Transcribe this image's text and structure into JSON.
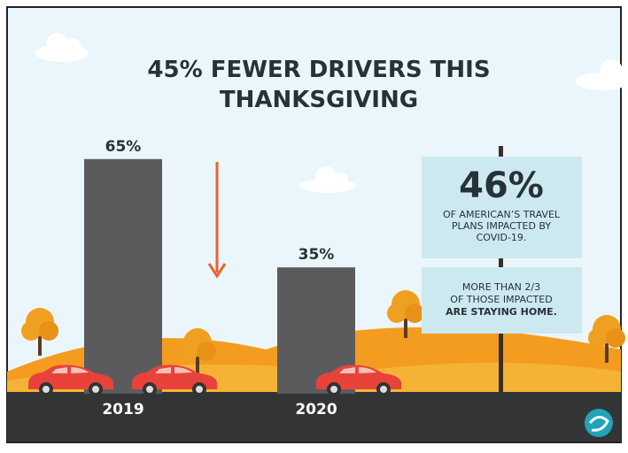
{
  "chart_data": {
    "type": "bar",
    "title": "45% FEWER DRIVERS THIS THANKSGIVING",
    "categories": [
      "2019",
      "2020"
    ],
    "values": [
      65,
      35
    ],
    "value_labels": [
      "65%",
      "35%"
    ],
    "color": "#5b5b5e",
    "annotations": [
      "46%",
      "OF AMERICAN’S TRAVEL",
      "PLANS IMPACTED BY",
      "COVID-19.",
      "MORE THAN 2/3",
      "OF THOSE IMPACTED",
      "ARE STAYING HOME."
    ]
  }
}
